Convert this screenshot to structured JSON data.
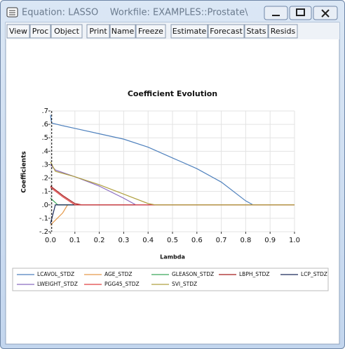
{
  "window": {
    "title": "Equation: LASSO    Workfile: EXAMPLES::Prostate\\",
    "toolbar": [
      "View",
      "Proc",
      "Object",
      "Print",
      "Name",
      "Freeze",
      "Estimate",
      "Forecast",
      "Stats",
      "Resids"
    ]
  },
  "chart_data": {
    "type": "line",
    "title": "Coefficient Evolution",
    "x_label": "Lambda",
    "y_label": "Coefficients",
    "xlim": [
      0,
      1
    ],
    "ylim": [
      -0.2,
      0.7
    ],
    "xticks": [
      {
        "value": 0,
        "label": "0.0"
      },
      {
        "value": 0.1,
        "label": "0.1"
      },
      {
        "value": 0.2,
        "label": "0.2"
      },
      {
        "value": 0.3,
        "label": "0.3"
      },
      {
        "value": 0.4,
        "label": "0.4"
      },
      {
        "value": 0.5,
        "label": "0.5"
      },
      {
        "value": 0.6,
        "label": "0.6"
      },
      {
        "value": 0.7,
        "label": "0.7"
      },
      {
        "value": 0.8,
        "label": "0.8"
      },
      {
        "value": 0.9,
        "label": "0.9"
      },
      {
        "value": 1,
        "label": "1.0"
      }
    ],
    "yticks": [
      {
        "value": 0.7,
        "label": ".7"
      },
      {
        "value": 0.6,
        "label": ".6"
      },
      {
        "value": 0.5,
        "label": ".5"
      },
      {
        "value": 0.4,
        "label": ".4"
      },
      {
        "value": 0.3,
        "label": ".3"
      },
      {
        "value": 0.2,
        "label": ".2"
      },
      {
        "value": 0.1,
        "label": ".1"
      },
      {
        "value": 0,
        "label": ".0"
      },
      {
        "value": -0.1,
        "label": "-.1"
      },
      {
        "value": -0.2,
        "label": "-.2"
      }
    ],
    "grid": true,
    "vline": 0.005,
    "series": [
      {
        "name": "LCAVOL_STDZ",
        "color": "#4f81bd",
        "x": [
          0,
          0.005,
          0.05,
          0.1,
          0.2,
          0.3,
          0.4,
          0.5,
          0.6,
          0.7,
          0.8,
          0.83,
          1.0
        ],
        "values": [
          0.67,
          0.61,
          0.59,
          0.57,
          0.53,
          0.49,
          0.43,
          0.35,
          0.27,
          0.17,
          0.03,
          0,
          0
        ]
      },
      {
        "name": "AGE_STDZ",
        "color": "#e59a4c",
        "x": [
          0,
          0.05,
          0.07,
          1.0
        ],
        "values": [
          -0.15,
          -0.06,
          0,
          0
        ]
      },
      {
        "name": "GLEASON_STDZ",
        "color": "#3aa85a",
        "x": [
          0,
          0.03,
          1.0
        ],
        "values": [
          0.05,
          0,
          0
        ]
      },
      {
        "name": "LBPH_STDZ",
        "color": "#a51c1c",
        "x": [
          0,
          0.05,
          0.1,
          0.13,
          1.0
        ],
        "values": [
          0.14,
          0.07,
          0.01,
          0,
          0
        ]
      },
      {
        "name": "LCP_STDZ",
        "color": "#1c2a5a",
        "x": [
          0,
          0.02,
          1.0
        ],
        "values": [
          -0.14,
          0,
          0
        ]
      },
      {
        "name": "LWEIGHT_STDZ",
        "color": "#8a6cc0",
        "x": [
          0,
          0.02,
          0.1,
          0.2,
          0.3,
          0.35,
          1.0
        ],
        "values": [
          0.3,
          0.26,
          0.21,
          0.14,
          0.05,
          0,
          0
        ]
      },
      {
        "name": "PGG45_STDZ",
        "color": "#e04040",
        "x": [
          0,
          0.05,
          0.1,
          1.0
        ],
        "values": [
          0.13,
          0.06,
          0,
          0
        ]
      },
      {
        "name": "SVI_STDZ",
        "color": "#b0a040",
        "x": [
          0,
          0.02,
          0.1,
          0.2,
          0.3,
          0.4,
          0.43,
          1.0
        ],
        "values": [
          0.32,
          0.25,
          0.21,
          0.15,
          0.08,
          0.01,
          0,
          0
        ]
      }
    ]
  }
}
